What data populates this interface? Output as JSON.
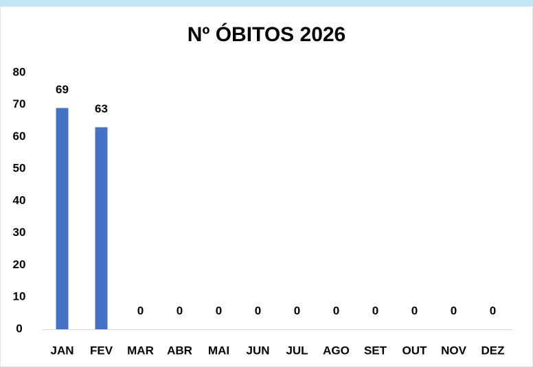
{
  "chart_data": {
    "type": "bar",
    "title": "Nº ÓBITOS 2026",
    "categories": [
      "JAN",
      "FEV",
      "MAR",
      "ABR",
      "MAI",
      "JUN",
      "JUL",
      "AGO",
      "SET",
      "OUT",
      "NOV",
      "DEZ"
    ],
    "values": [
      69,
      63,
      0,
      0,
      0,
      0,
      0,
      0,
      0,
      0,
      0,
      0
    ],
    "color": "#4472c4",
    "ylim": [
      0,
      80
    ],
    "yticks": [
      0,
      10,
      20,
      30,
      40,
      50,
      60,
      70,
      80
    ],
    "grid": false
  }
}
